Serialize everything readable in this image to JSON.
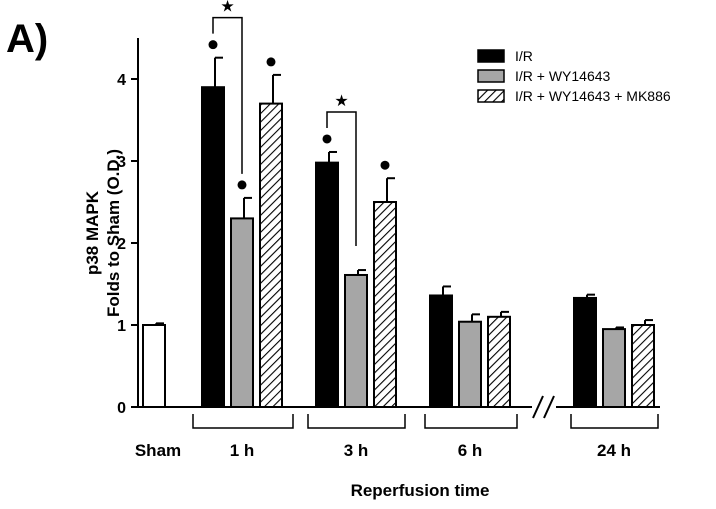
{
  "panel_label": "A)",
  "chart_data": {
    "type": "bar",
    "ylabel_lines": [
      "p38 MAPK",
      "Folds to Sham (O.D.)"
    ],
    "xlabel": "Reperfusion time",
    "ylim": [
      0,
      4.5
    ],
    "yticks": [
      0,
      1,
      2,
      3,
      4
    ],
    "grid": false,
    "legend_position": "top-right",
    "axis_break_symbol": "//",
    "sham": {
      "label": "Sham",
      "value": 1.0,
      "error": 0.02,
      "color": "#ffffff"
    },
    "categories": [
      "1 h",
      "3 h",
      "6 h",
      "24 h"
    ],
    "series": [
      {
        "name": "I/R",
        "fill": "solid",
        "color": "#000000",
        "values": [
          3.9,
          2.98,
          1.36,
          1.33
        ],
        "errors": [
          0.36,
          0.13,
          0.11,
          0.04
        ]
      },
      {
        "name": "I/R + WY14643",
        "fill": "solid",
        "color": "#a6a6a6",
        "values": [
          2.3,
          1.61,
          1.04,
          0.95
        ],
        "errors": [
          0.25,
          0.06,
          0.09,
          0.02
        ]
      },
      {
        "name": "I/R + WY14643 + MK886",
        "fill": "hatch",
        "color": "#ffffff",
        "values": [
          3.7,
          2.5,
          1.1,
          1.0
        ],
        "errors": [
          0.35,
          0.29,
          0.06,
          0.06
        ]
      }
    ],
    "significance_markers": [
      {
        "symbol": "●",
        "category": 0,
        "series": 0
      },
      {
        "symbol": "●",
        "category": 0,
        "series": 1
      },
      {
        "symbol": "●",
        "category": 0,
        "series": 2
      },
      {
        "symbol": "●",
        "category": 1,
        "series": 0
      },
      {
        "symbol": "●",
        "category": 1,
        "series": 2
      }
    ],
    "comparison_brackets": [
      {
        "symbol": "★",
        "category": 0,
        "from_series": 0,
        "to_series": 1
      },
      {
        "symbol": "★",
        "category": 1,
        "from_series": 0,
        "to_series": 1
      }
    ]
  }
}
